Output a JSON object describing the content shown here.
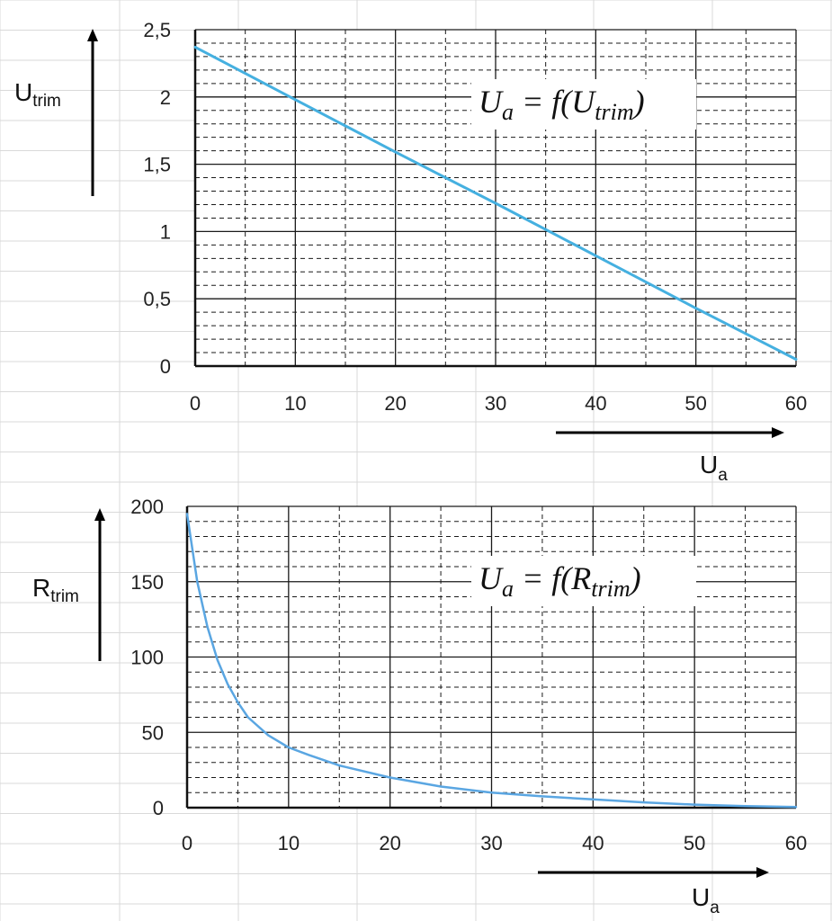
{
  "colors": {
    "sheet_grid": "#d9d9d9",
    "major_grid": "#1a1a1a",
    "minor_grid": "#1a1a1a",
    "curve": "#45b0e0",
    "curve2": "#5aa6e2"
  },
  "chart_data": [
    {
      "type": "line",
      "formula": {
        "prefix": "U",
        "prefix_sub": "a",
        "mid": " = f(U",
        "mid_sub": "trim",
        "suffix": ")"
      },
      "xlabel": {
        "main": "U",
        "sub": "a"
      },
      "ylabel": {
        "main": "U",
        "sub": "trim"
      },
      "xlim": [
        0,
        60
      ],
      "ylim": [
        0,
        2.5
      ],
      "x_ticks": [
        0,
        10,
        20,
        30,
        40,
        50,
        60
      ],
      "x_tick_labels": [
        "0",
        "10",
        "20",
        "30",
        "40",
        "50",
        "60"
      ],
      "y_ticks": [
        0,
        0.5,
        1,
        1.5,
        2,
        2.5
      ],
      "y_tick_labels": [
        "0",
        "0,5",
        "1",
        "1,5",
        "2",
        "2,5"
      ],
      "x_minor_step": 5,
      "y_minor_step": 0.1,
      "grid": true,
      "series": [
        {
          "x": [
            0,
            10,
            20,
            30,
            40,
            50,
            60
          ],
          "y": [
            2.37,
            1.98,
            1.59,
            1.21,
            0.82,
            0.43,
            0.05
          ]
        }
      ]
    },
    {
      "type": "line",
      "formula": {
        "prefix": "U",
        "prefix_sub": "a",
        "mid": " = f(R",
        "mid_sub": "trim",
        "suffix": ")"
      },
      "xlabel": {
        "main": "U",
        "sub": "a"
      },
      "ylabel": {
        "main": "R",
        "sub": "trim"
      },
      "xlim": [
        0,
        60
      ],
      "ylim": [
        0,
        200
      ],
      "x_ticks": [
        0,
        10,
        20,
        30,
        40,
        50,
        60
      ],
      "x_tick_labels": [
        "0",
        "10",
        "20",
        "30",
        "40",
        "50",
        "60"
      ],
      "y_ticks": [
        0,
        50,
        100,
        150,
        200
      ],
      "y_tick_labels": [
        "0",
        "50",
        "100",
        "150",
        "200"
      ],
      "x_minor_step": 5,
      "y_minor_step": 10,
      "grid": true,
      "series": [
        {
          "x": [
            0,
            1,
            2,
            3,
            4,
            5,
            6,
            8,
            10,
            12,
            15,
            20,
            25,
            30,
            35,
            40,
            45,
            50,
            55,
            60
          ],
          "y": [
            195,
            150,
            120,
            98,
            82,
            70,
            60,
            48,
            40,
            35,
            28,
            20,
            14,
            10,
            7.5,
            5.5,
            3.5,
            2,
            1,
            0.5
          ]
        }
      ]
    }
  ]
}
